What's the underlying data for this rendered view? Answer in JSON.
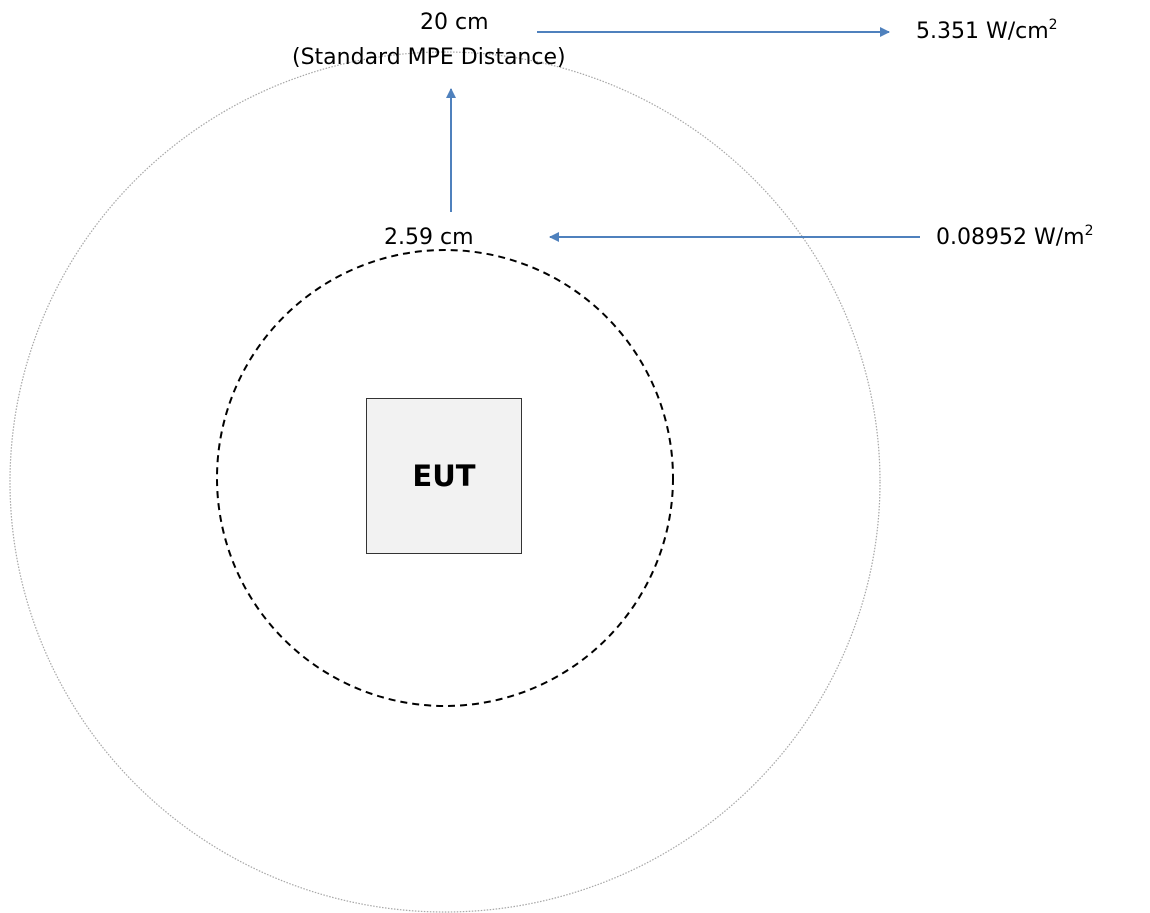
{
  "outer_boundary": {
    "distance": "20 cm",
    "description": "(Standard MPE Distance)",
    "power_density_value": "5.351 W/cm",
    "power_density_exponent": "2"
  },
  "inner_boundary": {
    "distance": "2.59 cm",
    "power_density_value": "0.08952 W/m",
    "power_density_exponent": "2"
  },
  "device": {
    "label": "EUT"
  },
  "colors": {
    "arrow": "#4f81bd",
    "outer_circle": "#a6a6a6",
    "inner_circle": "#000000",
    "eut_fill": "#f2f2f2"
  }
}
